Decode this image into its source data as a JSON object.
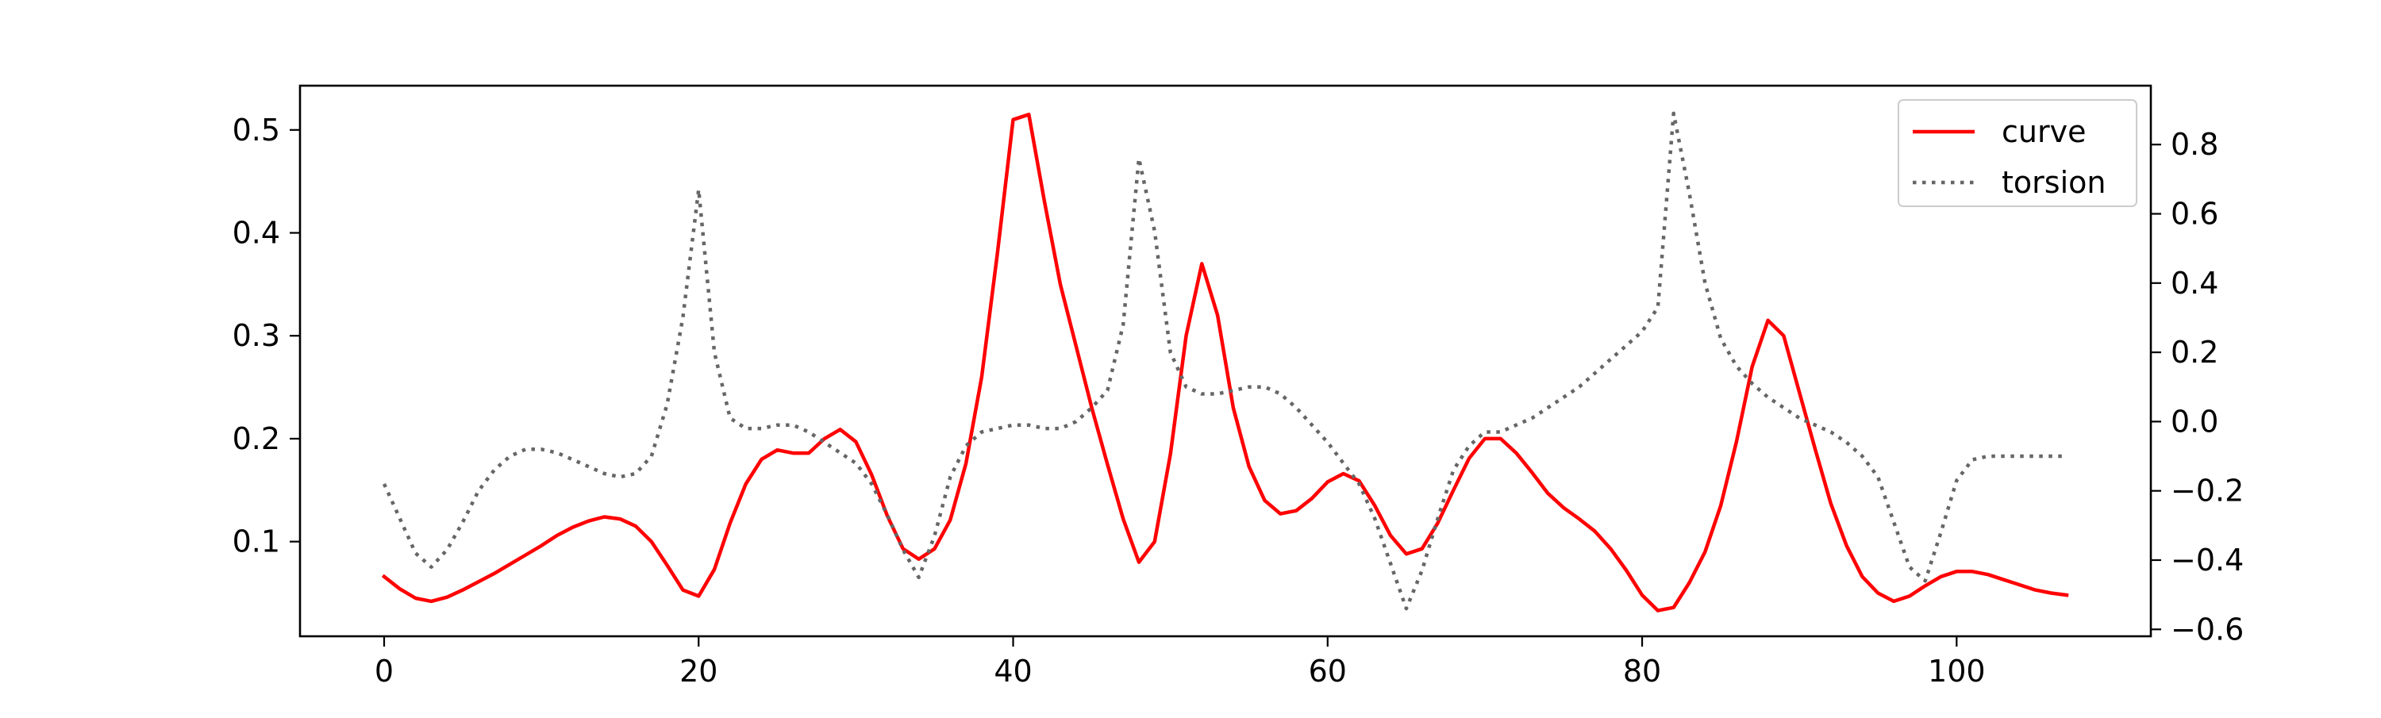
{
  "chart_data": {
    "type": "line",
    "title": "",
    "xlabel": "",
    "ylabel_left": "",
    "ylabel_right": "",
    "xlim": [
      -5.35,
      112.35
    ],
    "ylim_left": [
      0.008,
      0.543
    ],
    "ylim_right": [
      -0.62,
      0.97
    ],
    "x_ticks": [
      0,
      20,
      40,
      60,
      80,
      100
    ],
    "x_tick_labels": [
      "0",
      "20",
      "40",
      "60",
      "80",
      "100"
    ],
    "y_left_ticks": [
      0.1,
      0.2,
      0.3,
      0.4,
      0.5
    ],
    "y_left_tick_labels": [
      "0.1",
      "0.2",
      "0.3",
      "0.4",
      "0.5"
    ],
    "y_right_ticks": [
      -0.6,
      -0.4,
      -0.2,
      0.0,
      0.2,
      0.4,
      0.6,
      0.8
    ],
    "y_right_tick_labels": [
      "−0.6",
      "−0.4",
      "−0.2",
      "0.0",
      "0.2",
      "0.4",
      "0.6",
      "0.8"
    ],
    "grid": false,
    "legend": {
      "placement": "top-right",
      "entries": [
        "curve",
        "torsion"
      ]
    },
    "series": [
      {
        "name": "curve",
        "axis": "left",
        "color": "#ff0000",
        "style": "solid",
        "x": [
          0,
          1,
          2,
          3,
          4,
          5,
          6,
          7,
          8,
          9,
          10,
          11,
          12,
          13,
          14,
          15,
          16,
          17,
          18,
          19,
          20,
          21,
          22,
          23,
          24,
          25,
          26,
          27,
          28,
          29,
          30,
          31,
          32,
          33,
          34,
          35,
          36,
          37,
          38,
          39,
          40,
          41,
          42,
          43,
          44,
          45,
          46,
          47,
          48,
          49,
          50,
          51,
          52,
          53,
          54,
          55,
          56,
          57,
          58,
          59,
          60,
          61,
          62,
          63,
          64,
          65,
          66,
          67,
          68,
          69,
          70,
          71,
          72,
          73,
          74,
          75,
          76,
          77,
          78,
          79,
          80,
          81,
          82,
          83,
          84,
          85,
          86,
          87,
          88,
          89,
          90,
          91,
          92,
          93,
          94,
          95,
          96,
          97,
          98,
          99,
          100,
          101,
          102,
          103,
          104,
          105,
          106,
          107
        ],
        "y": [
          0.066,
          0.054,
          0.045,
          0.042,
          0.046,
          0.053,
          0.061,
          0.069,
          0.078,
          0.087,
          0.096,
          0.106,
          0.114,
          0.12,
          0.124,
          0.122,
          0.115,
          0.1,
          0.077,
          0.053,
          0.047,
          0.073,
          0.118,
          0.156,
          0.18,
          0.189,
          0.186,
          0.186,
          0.2,
          0.209,
          0.197,
          0.165,
          0.125,
          0.093,
          0.083,
          0.093,
          0.121,
          0.176,
          0.26,
          0.38,
          0.51,
          0.515,
          0.43,
          0.35,
          0.29,
          0.23,
          0.175,
          0.122,
          0.08,
          0.1,
          0.185,
          0.3,
          0.37,
          0.32,
          0.23,
          0.173,
          0.14,
          0.127,
          0.13,
          0.142,
          0.158,
          0.166,
          0.159,
          0.135,
          0.106,
          0.088,
          0.093,
          0.118,
          0.15,
          0.181,
          0.2,
          0.2,
          0.186,
          0.167,
          0.147,
          0.133,
          0.122,
          0.11,
          0.093,
          0.072,
          0.048,
          0.033,
          0.036,
          0.06,
          0.09,
          0.135,
          0.197,
          0.27,
          0.315,
          0.3,
          0.245,
          0.19,
          0.137,
          0.096,
          0.066,
          0.05,
          0.042,
          0.047,
          0.057,
          0.066,
          0.071,
          0.071,
          0.068,
          0.063,
          0.058,
          0.053,
          0.05,
          0.048
        ]
      },
      {
        "name": "torsion",
        "axis": "right",
        "color": "#666666",
        "style": "dotted",
        "x": [
          0,
          1,
          2,
          3,
          4,
          5,
          6,
          7,
          8,
          9,
          10,
          11,
          12,
          13,
          14,
          15,
          16,
          17,
          18,
          19,
          20,
          21,
          22,
          23,
          24,
          25,
          26,
          27,
          28,
          29,
          30,
          31,
          32,
          33,
          34,
          35,
          36,
          37,
          38,
          39,
          40,
          41,
          42,
          43,
          44,
          45,
          46,
          47,
          48,
          49,
          50,
          51,
          52,
          53,
          54,
          55,
          56,
          57,
          58,
          59,
          60,
          61,
          62,
          63,
          64,
          65,
          66,
          67,
          68,
          69,
          70,
          71,
          72,
          73,
          74,
          75,
          76,
          77,
          78,
          79,
          80,
          81,
          82,
          83,
          84,
          85,
          86,
          87,
          88,
          89,
          90,
          91,
          92,
          93,
          94,
          95,
          96,
          97,
          98,
          99,
          100,
          101,
          102,
          103,
          104,
          105,
          106,
          107
        ],
        "y": [
          -0.18,
          -0.28,
          -0.38,
          -0.42,
          -0.37,
          -0.29,
          -0.2,
          -0.14,
          -0.1,
          -0.08,
          -0.08,
          -0.09,
          -0.11,
          -0.13,
          -0.15,
          -0.16,
          -0.15,
          -0.1,
          0.05,
          0.3,
          0.67,
          0.2,
          0.01,
          -0.02,
          -0.02,
          -0.01,
          -0.01,
          -0.03,
          -0.06,
          -0.09,
          -0.12,
          -0.18,
          -0.27,
          -0.37,
          -0.45,
          -0.33,
          -0.16,
          -0.07,
          -0.03,
          -0.02,
          -0.01,
          -0.01,
          -0.02,
          -0.02,
          0.0,
          0.04,
          0.09,
          0.28,
          0.76,
          0.55,
          0.2,
          0.1,
          0.08,
          0.08,
          0.09,
          0.1,
          0.1,
          0.08,
          0.04,
          -0.01,
          -0.06,
          -0.12,
          -0.18,
          -0.28,
          -0.41,
          -0.54,
          -0.43,
          -0.28,
          -0.14,
          -0.07,
          -0.03,
          -0.03,
          -0.01,
          0.01,
          0.04,
          0.07,
          0.1,
          0.14,
          0.18,
          0.22,
          0.26,
          0.33,
          0.89,
          0.66,
          0.4,
          0.24,
          0.16,
          0.11,
          0.07,
          0.04,
          0.01,
          -0.01,
          -0.03,
          -0.06,
          -0.1,
          -0.16,
          -0.29,
          -0.42,
          -0.46,
          -0.32,
          -0.17,
          -0.11,
          -0.1,
          -0.1,
          -0.1,
          -0.1,
          -0.1,
          -0.1
        ]
      }
    ]
  }
}
